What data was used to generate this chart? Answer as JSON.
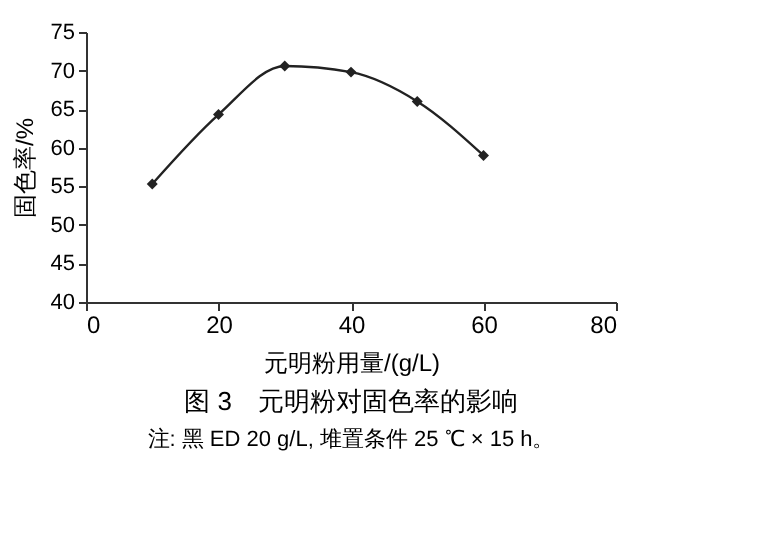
{
  "chart_data": {
    "type": "line",
    "title": "图 3　元明粉对固色率的影响",
    "xlabel": "元明粉用量/(g/L)",
    "ylabel": "固色率/%",
    "annotations": [
      "注: 黑 ED 20 g/L, 堆置条件 25 ℃ × 15 h。"
    ],
    "x": [
      10,
      20,
      30,
      40,
      50,
      60
    ],
    "series": [
      {
        "color": "#222222",
        "values": [
          55.3,
          64.3,
          70.6,
          69.8,
          66.0,
          59.0
        ]
      }
    ],
    "xlim": [
      0,
      80
    ],
    "xticks": [
      0,
      20,
      40,
      60,
      80
    ],
    "ylim": [
      40,
      75
    ],
    "yticks": [
      40,
      45,
      50,
      55,
      60,
      65,
      70,
      75
    ],
    "grid": false,
    "legend": false,
    "marker": "diamond",
    "line_style": "solid"
  }
}
